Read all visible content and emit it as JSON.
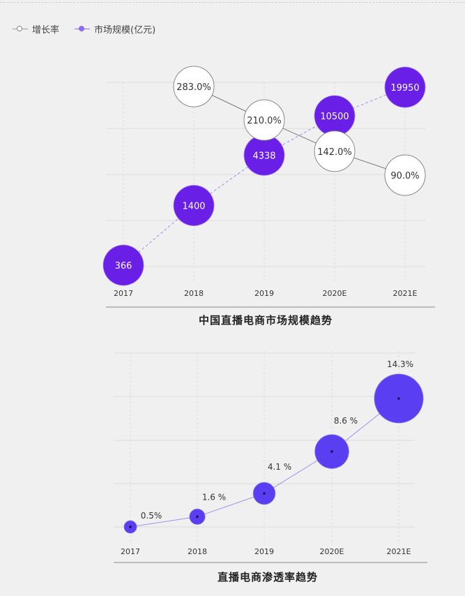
{
  "legend": {
    "growth_label": "增长率",
    "market_label": "市场规模(亿元)"
  },
  "colors": {
    "market": "#6a1fe6",
    "market_line": "#a48cf0",
    "growth_fill": "#ffffff",
    "growth_line": "#777777",
    "penetration": "#5a3ff2",
    "grid": "#dcdcdc",
    "axis": "#888888"
  },
  "chart_data": [
    {
      "type": "scatter",
      "title": "中国直播电商市场规模趋势",
      "categories": [
        "2017",
        "2018",
        "2019",
        "2020E",
        "2021E"
      ],
      "series": [
        {
          "name": "增长率",
          "values": [
            null,
            283.0,
            210.0,
            142.0,
            90.0
          ],
          "labels": [
            "",
            "283.0%",
            "210.0%",
            "142.0%",
            "90.0%"
          ]
        },
        {
          "name": "市场规模(亿元)",
          "values": [
            366,
            1400,
            4338,
            10500,
            19950
          ],
          "labels": [
            "366",
            "1400",
            "4338",
            "10500",
            "19950"
          ]
        }
      ],
      "grid": true,
      "legend": "top-left"
    },
    {
      "type": "scatter",
      "title": "直播电商渗透率趋势",
      "categories": [
        "2017",
        "2018",
        "2019",
        "2020E",
        "2021E"
      ],
      "values": [
        0.5,
        1.6,
        4.1,
        8.6,
        14.3
      ],
      "labels": [
        "0.5%",
        "1.6 %",
        "4.1 %",
        "8.6 %",
        "14.3%"
      ],
      "grid": true
    }
  ]
}
